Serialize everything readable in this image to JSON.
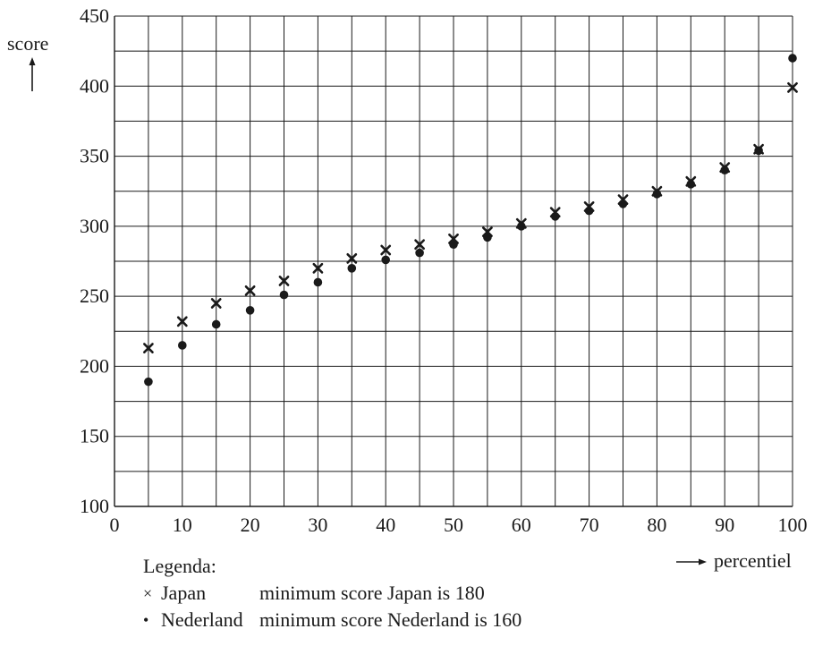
{
  "chart_data": {
    "type": "scatter",
    "ylabel": "score",
    "xlabel": "percentiel",
    "xlim": [
      0,
      100
    ],
    "ylim": [
      100,
      450
    ],
    "x_ticks": [
      0,
      10,
      20,
      30,
      40,
      50,
      60,
      70,
      80,
      90,
      100
    ],
    "y_ticks": [
      100,
      150,
      200,
      250,
      300,
      350,
      400,
      450
    ],
    "grid": true,
    "series": [
      {
        "name": "Japan",
        "marker": "cross",
        "x": [
          5,
          10,
          15,
          20,
          25,
          30,
          35,
          40,
          45,
          50,
          55,
          60,
          65,
          70,
          75,
          80,
          85,
          90,
          95,
          100
        ],
        "y": [
          213,
          232,
          245,
          254,
          261,
          270,
          277,
          283,
          287,
          291,
          296,
          302,
          310,
          314,
          319,
          325,
          332,
          342,
          355,
          399
        ]
      },
      {
        "name": "Nederland",
        "marker": "dot",
        "x": [
          5,
          10,
          15,
          20,
          25,
          30,
          35,
          40,
          45,
          50,
          55,
          60,
          65,
          70,
          75,
          80,
          85,
          90,
          95,
          100
        ],
        "y": [
          189,
          215,
          230,
          240,
          251,
          260,
          270,
          276,
          281,
          287,
          292,
          300,
          307,
          311,
          316,
          323,
          330,
          340,
          354,
          420
        ]
      }
    ]
  },
  "legend": {
    "title": "Legenda:",
    "items": [
      {
        "marker": "×",
        "name": "Japan",
        "note": "minimum score Japan is 180"
      },
      {
        "marker": "•",
        "name": "Nederland",
        "note": "minimum score Nederland is 160"
      }
    ]
  }
}
